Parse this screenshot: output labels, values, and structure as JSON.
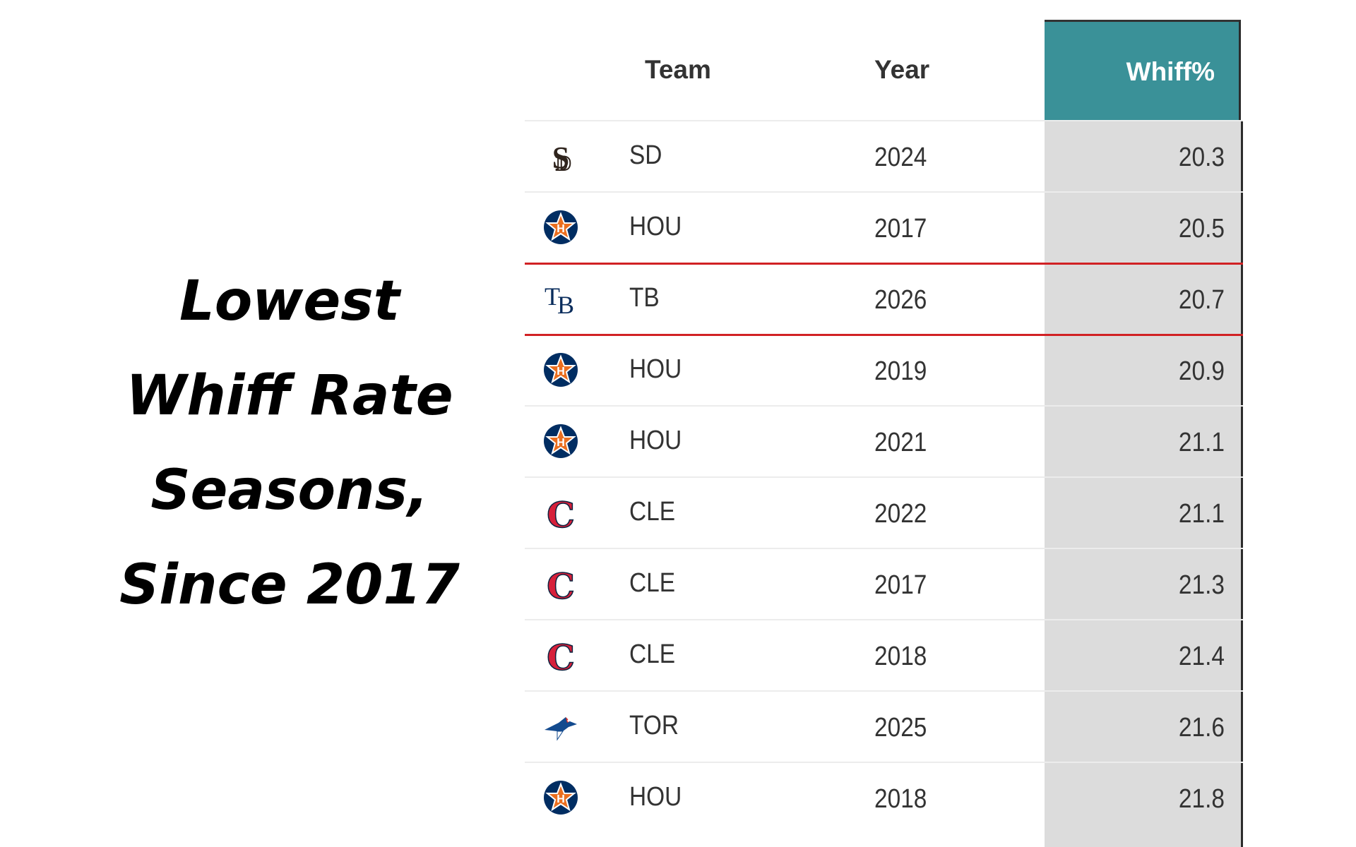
{
  "headline": {
    "line1": "Lowest",
    "line2": "Whiff Rate",
    "line3": "Seasons,",
    "line4": "Since 2017"
  },
  "table": {
    "headers": {
      "team": "Team",
      "year": "Year",
      "whiff": "Whiff%"
    },
    "header_color": "#3a9198",
    "highlight_color": "#d12124",
    "rows": [
      {
        "team": "SD",
        "year": "2024",
        "whiff": "20.3",
        "logo": "padres-logo"
      },
      {
        "team": "HOU",
        "year": "2017",
        "whiff": "20.5",
        "logo": "astros-logo"
      },
      {
        "team": "TB",
        "year": "2026",
        "whiff": "20.7",
        "logo": "rays-logo",
        "highlighted": true
      },
      {
        "team": "HOU",
        "year": "2019",
        "whiff": "20.9",
        "logo": "astros-logo"
      },
      {
        "team": "HOU",
        "year": "2021",
        "whiff": "21.1",
        "logo": "astros-logo"
      },
      {
        "team": "CLE",
        "year": "2022",
        "whiff": "21.1",
        "logo": "guardians-logo"
      },
      {
        "team": "CLE",
        "year": "2017",
        "whiff": "21.3",
        "logo": "guardians-logo"
      },
      {
        "team": "CLE",
        "year": "2018",
        "whiff": "21.4",
        "logo": "guardians-logo"
      },
      {
        "team": "TOR",
        "year": "2025",
        "whiff": "21.6",
        "logo": "blue-jays-logo"
      },
      {
        "team": "HOU",
        "year": "2018",
        "whiff": "21.8",
        "logo": "astros-logo"
      }
    ]
  },
  "chart_data": {
    "type": "table",
    "columns": [
      "Team",
      "Year",
      "Whiff%"
    ],
    "rows": [
      [
        "SD",
        "2024",
        20.3
      ],
      [
        "HOU",
        "2017",
        20.5
      ],
      [
        "TB",
        "2026",
        20.7
      ],
      [
        "HOU",
        "2019",
        20.9
      ],
      [
        "HOU",
        "2021",
        21.1
      ],
      [
        "CLE",
        "2022",
        21.1
      ],
      [
        "CLE",
        "2017",
        21.3
      ],
      [
        "CLE",
        "2018",
        21.4
      ],
      [
        "TOR",
        "2025",
        21.6
      ],
      [
        "HOU",
        "2018",
        21.8
      ]
    ]
  }
}
